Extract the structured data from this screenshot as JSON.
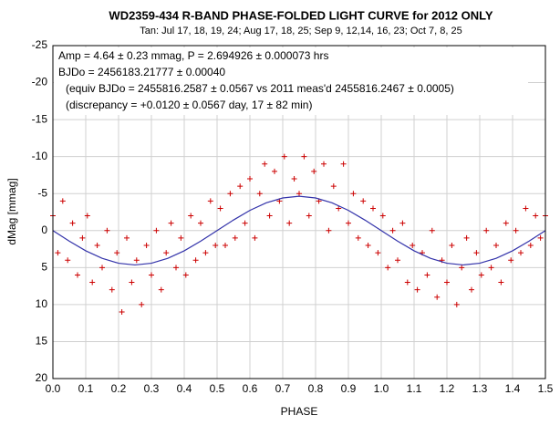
{
  "chart_data": {
    "type": "scatter",
    "title": "WD2359-434  R-BAND PHASE-FOLDED LIGHT CURVE for 2012 ONLY",
    "subtitle": "Tan: Jul 17, 18, 19, 24; Aug 17, 18, 25; Sep 9, 12,14, 16, 23; Oct  7, 8, 25",
    "annotations": [
      "Amp = 4.64 ± 0.23 mmag, P = 2.694926  ± 0.000073 hrs",
      "BJDo = 2456183.21777  ± 0.00040",
      "(equiv  BJDo = 2455816.2587  ± 0.0567 vs 2011 meas'd 2455816.2467  ± 0.0005)",
      "(discrepancy  = +0.0120 ± 0.0567 day, 17 ± 82 min)"
    ],
    "xlabel": "PHASE",
    "ylabel": "dMag [mmag]",
    "xlim": [
      0,
      1.5
    ],
    "xticks": [
      {
        "value": 0,
        "label": "0.0"
      },
      0.1,
      0.2,
      0.3,
      0.4,
      0.5,
      0.6,
      0.7,
      0.8,
      0.9,
      {
        "value": 1,
        "label": "1.0"
      },
      1.1,
      1.2,
      1.3,
      1.4,
      1.5
    ],
    "ylim": [
      -25,
      20
    ],
    "y_inverted": true,
    "yticks": [
      -25,
      -20,
      -15,
      -10,
      -5,
      0,
      5,
      10,
      15,
      20
    ],
    "grid": true,
    "points": {
      "color": "#cc0000",
      "x": [
        0,
        0.015,
        0.03,
        0.045,
        0.06,
        0.075,
        0.09,
        0.105,
        0.12,
        0.135,
        0.15,
        0.165,
        0.18,
        0.195,
        0.21,
        0.225,
        0.24,
        0.255,
        0.27,
        0.285,
        0.3,
        0.315,
        0.33,
        0.345,
        0.36,
        0.375,
        0.39,
        0.405,
        0.42,
        0.435,
        0.45,
        0.465,
        0.48,
        0.495,
        0.51,
        0.525,
        0.54,
        0.555,
        0.57,
        0.585,
        0.6,
        0.615,
        0.63,
        0.645,
        0.66,
        0.675,
        0.69,
        0.705,
        0.72,
        0.735,
        0.75,
        0.765,
        0.78,
        0.795,
        0.81,
        0.825,
        0.84,
        0.855,
        0.87,
        0.885,
        0.9,
        0.915,
        0.93,
        0.945,
        0.96,
        0.975,
        0.99,
        1.005,
        1.02,
        1.035,
        1.05,
        1.065,
        1.08,
        1.095,
        1.11,
        1.125,
        1.14,
        1.155,
        1.17,
        1.185,
        1.2,
        1.215,
        1.23,
        1.245,
        1.26,
        1.275,
        1.29,
        1.305,
        1.32,
        1.335,
        1.35,
        1.365,
        1.38,
        1.395,
        1.41,
        1.425,
        1.44,
        1.455,
        1.47,
        1.485,
        1.5
      ],
      "values": [
        -2,
        3,
        -4,
        4,
        -1,
        6,
        1,
        -2,
        7,
        2,
        5,
        0,
        8,
        3,
        11,
        1,
        7,
        4,
        10,
        2,
        6,
        0,
        8,
        3,
        -1,
        5,
        1,
        6,
        -2,
        4,
        -1,
        3,
        -4,
        2,
        -3,
        2,
        -5,
        1,
        -6,
        -1,
        -7,
        1,
        -5,
        -9,
        -2,
        -8,
        -4,
        -10,
        -1,
        -7,
        -5,
        -10,
        -2,
        -8,
        -4,
        -9,
        0,
        -6,
        -3,
        -9,
        -1,
        -5,
        1,
        -4,
        2,
        -3,
        3,
        -2,
        5,
        0,
        4,
        -1,
        7,
        2,
        8,
        3,
        6,
        0,
        9,
        4,
        7,
        2,
        10,
        5,
        1,
        8,
        3,
        6,
        0,
        5,
        2,
        7,
        -1,
        4,
        0,
        3,
        -3,
        2,
        -2,
        1,
        -2
      ]
    },
    "fit": {
      "color": "#3333aa",
      "x": [
        0,
        0.05,
        0.1,
        0.15,
        0.2,
        0.25,
        0.3,
        0.35,
        0.4,
        0.45,
        0.5,
        0.55,
        0.6,
        0.65,
        0.7,
        0.75,
        0.8,
        0.85,
        0.9,
        0.95,
        1,
        1.05,
        1.1,
        1.15,
        1.2,
        1.25,
        1.3,
        1.35,
        1.4,
        1.45,
        1.5
      ],
      "values": [
        0,
        1.43,
        2.73,
        3.75,
        4.41,
        4.64,
        4.41,
        3.75,
        2.73,
        1.43,
        0,
        -1.43,
        -2.73,
        -3.75,
        -4.41,
        -4.64,
        -4.41,
        -3.75,
        -2.73,
        -1.43,
        0,
        1.43,
        2.73,
        3.75,
        4.41,
        4.64,
        4.41,
        3.75,
        2.73,
        1.43,
        0
      ]
    }
  }
}
